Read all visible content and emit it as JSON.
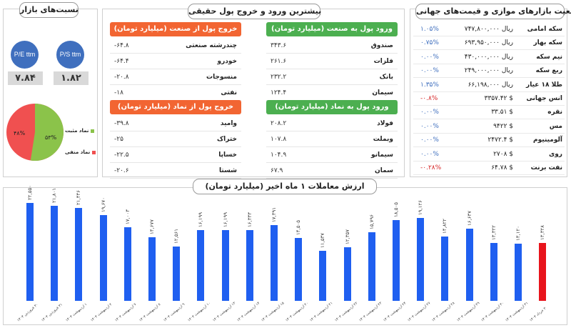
{
  "ratios": {
    "title": "نسبت‌های بازار",
    "pe_label": "P/E ttm",
    "ps_label": "P/S ttm",
    "pe_value": "۷.۸۴",
    "ps_value": "۱.۸۲",
    "pie": {
      "positive_pct": 53,
      "negative_pct": 48,
      "positive_label": "۵۳%",
      "negative_label": "۴۸%",
      "positive_color": "#8bc34a",
      "negative_color": "#f05050"
    },
    "legend_positive": "نماد مثبت",
    "legend_negative": "نماد منفی"
  },
  "flows": {
    "title": "بیشترین ورود و خروج پول حقیقی",
    "in_industry": {
      "header": "ورود پول به صنعت (میلیارد تومان)",
      "rows": [
        {
          "name": "صندوق",
          "value": "۳۴۳.۶"
        },
        {
          "name": "فلزات",
          "value": "۲۶۱.۶"
        },
        {
          "name": "بانک",
          "value": "۲۳۲.۲"
        },
        {
          "name": "سیمان",
          "value": "۱۲۴.۴"
        }
      ]
    },
    "out_industry": {
      "header": "خروج پول از صنعت (میلیارد تومان)",
      "rows": [
        {
          "name": "چندرشته صنعتی",
          "value": "-۶۴.۸"
        },
        {
          "name": "خودرو",
          "value": "-۶۴.۴"
        },
        {
          "name": "منسوجات",
          "value": "-۲۰.۸"
        },
        {
          "name": "نفتی",
          "value": "-۱۸"
        }
      ]
    },
    "in_symbol": {
      "header": "ورود پول به نماد (میلیارد تومان)",
      "rows": [
        {
          "name": "فولاد",
          "value": "۲۰۸.۲"
        },
        {
          "name": "وبملت",
          "value": "۱۰۷.۸"
        },
        {
          "name": "سیمانو",
          "value": "۱۰۴.۹"
        },
        {
          "name": "سمان",
          "value": "۶۷.۹"
        }
      ]
    },
    "out_symbol": {
      "header": "خروج پول از نماد (میلیارد تومان)",
      "rows": [
        {
          "name": "وامید",
          "value": "-۳۹.۸"
        },
        {
          "name": "ختراک",
          "value": "-۲۵"
        },
        {
          "name": "خساپا",
          "value": "-۲۲.۵"
        },
        {
          "name": "شستا",
          "value": "-۲۰.۶"
        }
      ]
    }
  },
  "global": {
    "title": "وضعیت بازارهای موازی و قیمت‌های جهانی",
    "rows": [
      {
        "name": "سکه امامی",
        "price": "ریال ۷۴۷,۸۰۰,۰۰۰",
        "change": "۱.۰۵%",
        "negative": false
      },
      {
        "name": "سکه بهار",
        "price": "ریال ۶۹۳,۹۵۰,۰۰۰",
        "change": "۰.۷۵%",
        "negative": false
      },
      {
        "name": "نیم سکه",
        "price": "ریال ۴۳۰,۰۰۰,۰۰۰",
        "change": "۰.۰۰%",
        "negative": false
      },
      {
        "name": "ربع سکه",
        "price": "ریال ۲۴۹,۰۰۰,۰۰۰",
        "change": "۰.۰۰%",
        "negative": false
      },
      {
        "name": "طلا ۱۸ عیار",
        "price": "ریال ۶۶,۱۹۸,۰۰۰",
        "change": "۱.۳۵%",
        "negative": false
      },
      {
        "name": "انس جهانی",
        "price": "$ ۳۳۵۷.۴۲",
        "change": "-۰.۸%",
        "negative": true
      },
      {
        "name": "نقره",
        "price": "$ ۳۳.۵۱",
        "change": "۰.۰۰%",
        "negative": false
      },
      {
        "name": "مس",
        "price": "$ ۹۴۲۲",
        "change": "۰.۰۰%",
        "negative": false
      },
      {
        "name": "آلومینیوم",
        "price": "$ ۲۴۷۲.۴",
        "change": "۰.۰۰%",
        "negative": false
      },
      {
        "name": "روی",
        "price": "$ ۲۷۰۸",
        "change": "۰.۰۰%",
        "negative": false
      },
      {
        "name": "نفت برنت",
        "price": "$ ۶۴.۷۸",
        "change": "-۰.۲۸%",
        "negative": true
      }
    ]
  },
  "chart_data": {
    "type": "bar",
    "title": "ارزش معاملات ۱ ماه اخیر (میلیارد تومان)",
    "ylim": [
      0,
      24000
    ],
    "bar_color": "#1f5ff0",
    "highlight_color": "#e8141c",
    "values": [
      22550,
      21801,
      21446,
      19670,
      17003,
      14677,
      12561,
      16199,
      16199,
      16333,
      17391,
      14505,
      11537,
      12357,
      15796,
      18505,
      19126,
      14822,
      16637,
      13322,
      13120,
      13328
    ],
    "labels": [
      "۲۲,۵۵۰",
      "۲۱,۸۰۱",
      "۲۱,۴۴۶",
      "۱۹,۶۷۰",
      "۱۷,۰۰۳",
      "۱۴,۶۷۷",
      "۱۲,۵۶۱",
      "۱۶,۱۹۹",
      "۱۶,۱۹۹",
      "۱۶,۳۳۳",
      "۱۷,۳۹۱",
      "۱۴,۵۰۵",
      "۱۱,۵۳۷",
      "۱۲,۳۵۷",
      "۱۵,۷۹۶",
      "۱۸,۵۰۵",
      "۱۹,۱۲۶",
      "۱۴,۸۲۲",
      "۱۶,۶۳۷",
      "۱۳,۳۲۲",
      "۱۳,۱۲۰",
      "۱۳,۳۲۸"
    ],
    "categories": [
      "۳۰ فروردین ۱۴۰۴",
      "۳۱ فروردین ۱۴۰۴",
      "۱ اردیبهشت ۱۴۰۴",
      "۲ اردیبهشت ۱۴۰۴",
      "۷ اردیبهشت ۱۴۰۴",
      "۸ اردیبهشت ۱۴۰۴",
      "۹ اردیبهشت ۱۴۰۴",
      "۱۰ اردیبهشت ۱۴۰۴",
      "۱۳ اردیبهشت ۱۴۰۴",
      "۱۴ اردیبهشت ۱۴۰۴",
      "۱۵ اردیبهشت ۱۴۰۴",
      "۲۰ اردیبهشت ۱۴۰۴",
      "۲۱ اردیبهشت ۱۴۰۴",
      "۲۲ اردیبهشت ۱۴۰۴",
      "۲۳ اردیبهشت ۱۴۰۴",
      "۲۴ اردیبهشت ۱۴۰۴",
      "۲۷ اردیبهشت ۱۴۰۴",
      "۲۸ اردیبهشت ۱۴۰۴",
      "۲۹ اردیبهشت ۱۴۰۴",
      "۳۰ اردیبهشت ۱۴۰۴",
      "۳۱ اردیبهشت ۱۴۰۴",
      "۳ خرداد ۱۴۰۴"
    ],
    "highlight_index": 21,
    "grid": false,
    "legend": false
  }
}
